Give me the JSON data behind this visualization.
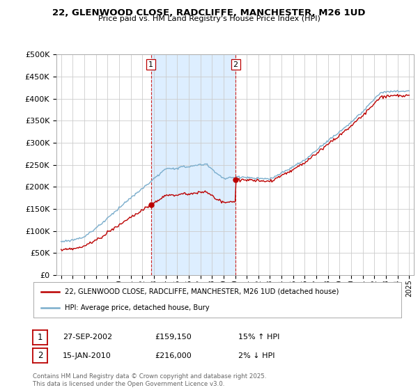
{
  "title_line1": "22, GLENWOOD CLOSE, RADCLIFFE, MANCHESTER, M26 1UD",
  "title_line2": "Price paid vs. HM Land Registry's House Price Index (HPI)",
  "x_start_year": 1995,
  "x_end_year": 2025,
  "y_min": 0,
  "y_max": 500000,
  "y_ticks": [
    0,
    50000,
    100000,
    150000,
    200000,
    250000,
    300000,
    350000,
    400000,
    450000,
    500000
  ],
  "sale1_date": 2002.75,
  "sale1_price": 159150,
  "sale2_date": 2010.04,
  "sale2_price": 216000,
  "sale1_label": "1",
  "sale2_label": "2",
  "red_color": "#bb0000",
  "blue_color": "#7aadcc",
  "vline_color": "#cc2222",
  "shading_color": "#ddeeff",
  "legend_label_red": "22, GLENWOOD CLOSE, RADCLIFFE, MANCHESTER, M26 1UD (detached house)",
  "legend_label_blue": "HPI: Average price, detached house, Bury",
  "table_row1": [
    "1",
    "27-SEP-2002",
    "£159,150",
    "15% ↑ HPI"
  ],
  "table_row2": [
    "2",
    "15-JAN-2010",
    "£216,000",
    "2% ↓ HPI"
  ],
  "footnote": "Contains HM Land Registry data © Crown copyright and database right 2025.\nThis data is licensed under the Open Government Licence v3.0.",
  "bg_color": "#ffffff",
  "plot_bg_color": "#ffffff",
  "grid_color": "#cccccc"
}
